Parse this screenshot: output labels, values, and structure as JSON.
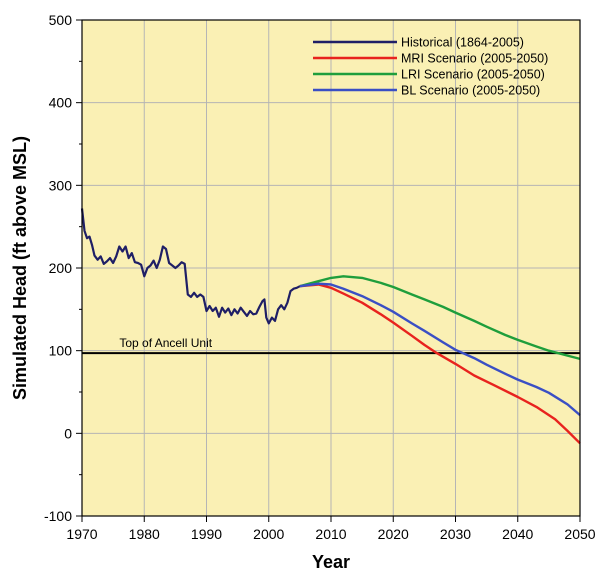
{
  "chart_data": {
    "type": "line",
    "xlabel": "Year",
    "ylabel": "Simulated Head (ft above MSL)",
    "xlim": [
      1970,
      2050
    ],
    "ylim": [
      -100,
      500
    ],
    "x_ticks": [
      1970,
      1980,
      1990,
      2000,
      2010,
      2020,
      2030,
      2040,
      2050
    ],
    "y_ticks": [
      -100,
      0,
      100,
      200,
      300,
      400,
      500
    ],
    "grid": true,
    "background": "#faf0b4",
    "legend_position": "top-right",
    "series": [
      {
        "name": "Historical (1864-2005)",
        "color": "#1f1f66",
        "x": [
          1970,
          1970.4,
          1970.8,
          1971.2,
          1971.6,
          1972,
          1972.5,
          1973,
          1973.5,
          1974,
          1974.5,
          1975,
          1975.5,
          1976,
          1976.5,
          1977,
          1977.5,
          1978,
          1978.5,
          1979,
          1979.5,
          1980,
          1980.5,
          1981,
          1981.5,
          1982,
          1982.5,
          1983,
          1983.5,
          1984,
          1984.5,
          1985,
          1985.5,
          1986,
          1986.5,
          1987,
          1987.5,
          1988,
          1988.5,
          1989,
          1989.5,
          1990,
          1990.5,
          1991,
          1991.5,
          1992,
          1992.5,
          1993,
          1993.5,
          1994,
          1994.5,
          1995,
          1995.5,
          1996,
          1996.5,
          1997,
          1997.5,
          1998,
          1998.5,
          1999,
          1999.3,
          1999.6,
          2000,
          2000.5,
          2001,
          2001.5,
          2002,
          2002.5,
          2003,
          2003.5,
          2004,
          2004.5,
          2005
        ],
        "y": [
          272,
          245,
          236,
          238,
          228,
          215,
          210,
          214,
          205,
          208,
          212,
          206,
          214,
          226,
          220,
          226,
          212,
          218,
          207,
          206,
          204,
          190,
          200,
          203,
          209,
          200,
          210,
          226,
          223,
          206,
          203,
          200,
          203,
          207,
          205,
          168,
          165,
          170,
          165,
          168,
          165,
          148,
          154,
          148,
          152,
          141,
          152,
          146,
          151,
          143,
          150,
          145,
          152,
          147,
          142,
          148,
          144,
          145,
          153,
          160,
          162,
          140,
          133,
          140,
          136,
          150,
          155,
          150,
          158,
          172,
          175,
          176,
          178
        ]
      },
      {
        "name": "MRI Scenario (2005-2050)",
        "color": "#e8231e",
        "x": [
          2005,
          2008,
          2010,
          2012,
          2015,
          2018,
          2020,
          2023,
          2025,
          2027,
          2030,
          2033,
          2036,
          2040,
          2043,
          2046,
          2048,
          2050
        ],
        "y": [
          178,
          180,
          176,
          169,
          158,
          144,
          134,
          118,
          107,
          97,
          84,
          70,
          59,
          44,
          32,
          17,
          3,
          -12
        ]
      },
      {
        "name": "LRI Scenario (2005-2050)",
        "color": "#1f9e3c",
        "x": [
          2005,
          2008,
          2010,
          2012,
          2015,
          2018,
          2020,
          2023,
          2025,
          2028,
          2030,
          2033,
          2035,
          2038,
          2040,
          2043,
          2045,
          2048,
          2050
        ],
        "y": [
          178,
          184,
          188,
          190,
          188,
          182,
          177,
          168,
          162,
          153,
          146,
          136,
          129,
          119,
          113,
          105,
          100,
          94,
          90
        ]
      },
      {
        "name": "BL Scenario (2005-2050)",
        "color": "#3a4fc4",
        "x": [
          2005,
          2008,
          2010,
          2012,
          2015,
          2018,
          2020,
          2023,
          2025,
          2028,
          2030,
          2033,
          2035,
          2038,
          2040,
          2043,
          2045,
          2048,
          2050
        ],
        "y": [
          178,
          181,
          180,
          175,
          166,
          155,
          147,
          133,
          124,
          110,
          101,
          91,
          83,
          72,
          65,
          56,
          49,
          35,
          22
        ]
      }
    ],
    "annotations": [
      {
        "text": "Top of Ancell Unit",
        "type": "horizontal_line",
        "y": 97
      }
    ]
  }
}
